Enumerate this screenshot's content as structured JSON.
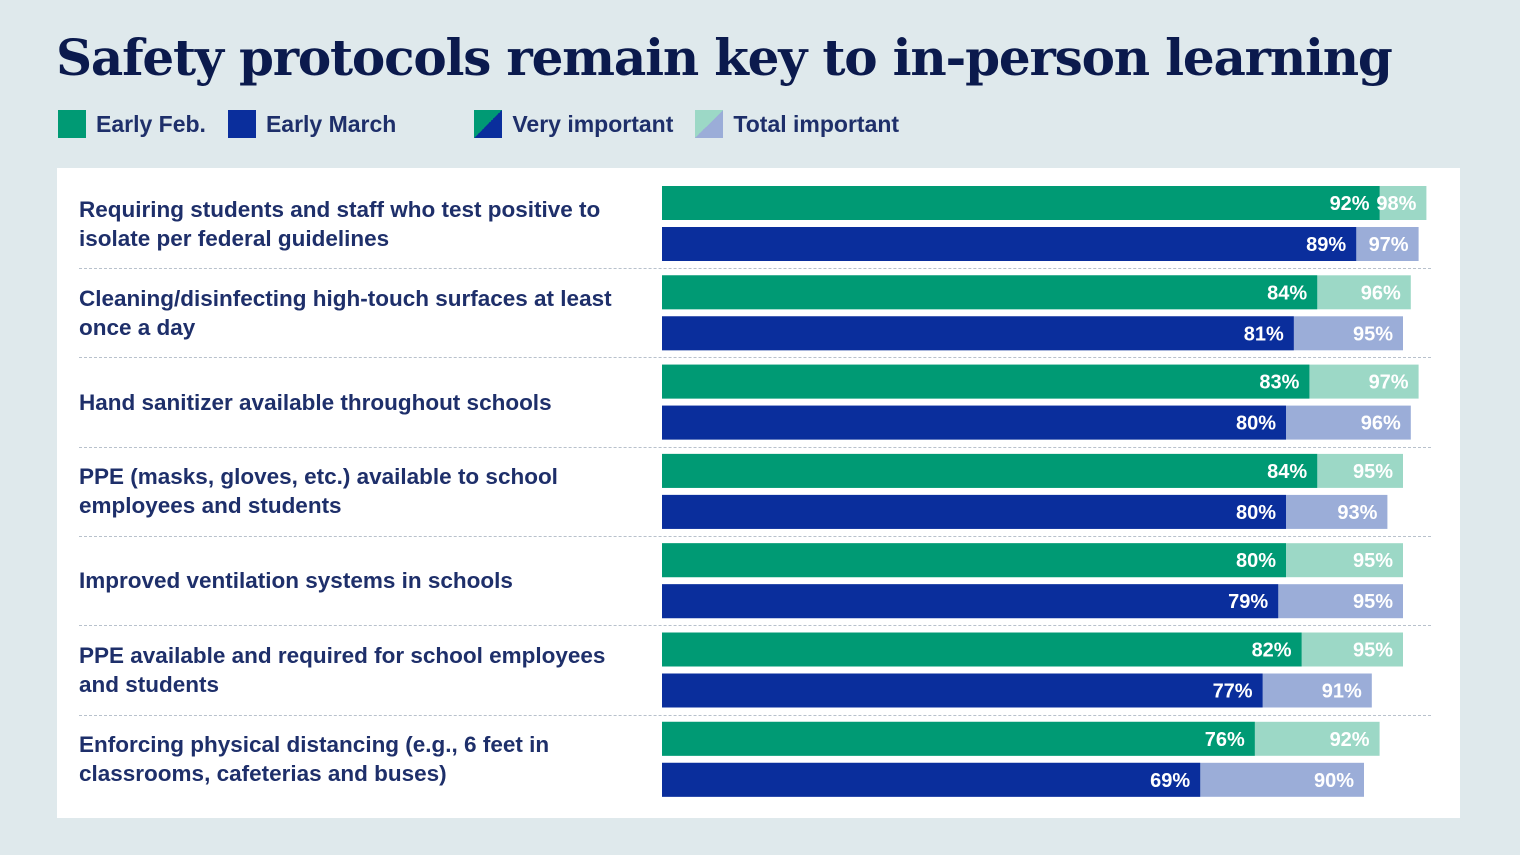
{
  "title": "Safety protocols remain key to in-person learning",
  "legend": [
    {
      "label": "Early Feb.",
      "color": "#009a74"
    },
    {
      "label": "Early March",
      "color": "#0a2e9c"
    },
    {
      "label": "Very important",
      "color_a": "#009a74",
      "color_b": "#0a2e9c"
    },
    {
      "label": "Total important",
      "color_a": "#9cd8c6",
      "color_b": "#9badd8"
    }
  ],
  "colors": {
    "feb_very": "#009a74",
    "feb_total": "#9cd8c6",
    "march_very": "#0a2e9c",
    "march_total": "#9badd8",
    "label_text": "#ffffff"
  },
  "chart_data": {
    "type": "bar",
    "orientation": "horizontal",
    "title": "Safety protocols remain key to in-person learning",
    "xlim": [
      0,
      100
    ],
    "value_suffix": "%",
    "categories": [
      "Requiring students and staff who test positive to isolate per federal guidelines",
      "Cleaning/disinfecting high-touch surfaces at least once a day",
      "Hand sanitizer available throughout schools",
      "PPE (masks, gloves, etc.) available to school employees and students",
      "Improved ventilation systems in schools",
      "PPE available and required for school employees and students",
      "Enforcing physical distancing (e.g., 6 feet in classrooms, cafeterias and buses)"
    ],
    "series": [
      {
        "name": "Early Feb. — Very important",
        "values": [
          92,
          84,
          83,
          84,
          80,
          82,
          76
        ]
      },
      {
        "name": "Early Feb. — Total important",
        "values": [
          98,
          96,
          97,
          95,
          95,
          95,
          92
        ]
      },
      {
        "name": "Early March — Very important",
        "values": [
          89,
          81,
          80,
          80,
          79,
          77,
          69
        ]
      },
      {
        "name": "Early March — Total important",
        "values": [
          97,
          95,
          96,
          93,
          95,
          91,
          90
        ]
      }
    ]
  }
}
